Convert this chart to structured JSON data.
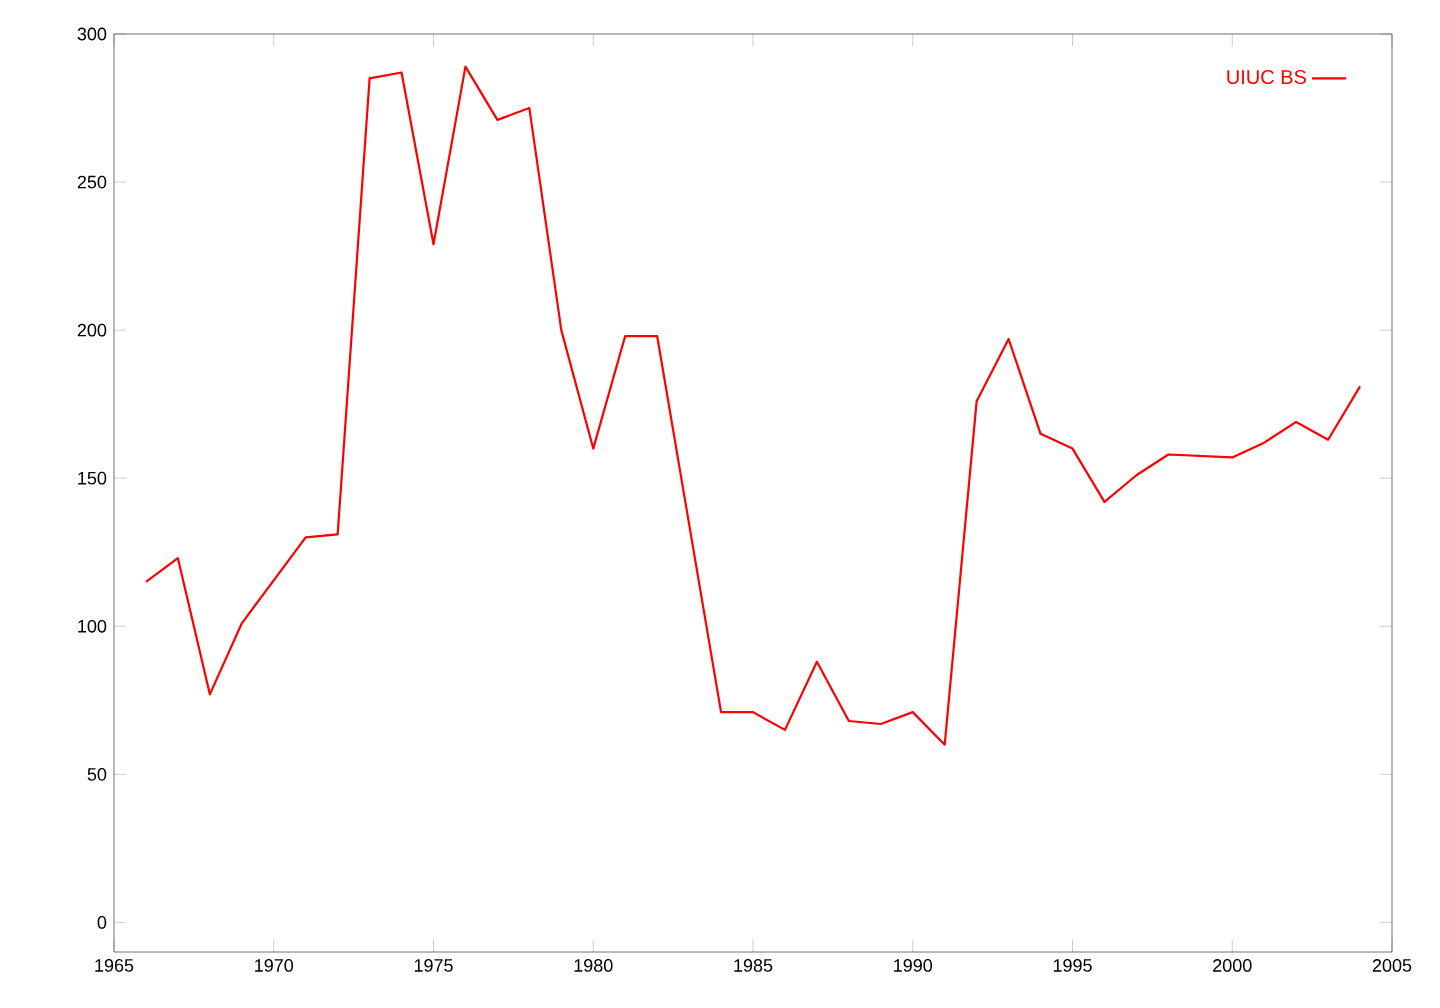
{
  "chart_data": {
    "type": "line",
    "xlim": [
      1965,
      2005
    ],
    "ylim": [
      -10,
      300
    ],
    "xticks": [
      1965,
      1970,
      1975,
      1980,
      1985,
      1990,
      1995,
      2000,
      2005
    ],
    "yticks": [
      0,
      50,
      100,
      150,
      200,
      250,
      300
    ],
    "legend": "top right",
    "grid": false,
    "marker": "none",
    "line_style": "solid",
    "series": [
      {
        "name": "UIUC BS",
        "color": "#ff0000",
        "x": [
          1966,
          1967,
          1968,
          1969,
          1971,
          1972,
          1973,
          1974,
          1975,
          1976,
          1977,
          1978,
          1979,
          1980,
          1981,
          1982,
          1984,
          1985,
          1986,
          1987,
          1988,
          1989,
          1990,
          1991,
          1992,
          1993,
          1994,
          1995,
          1996,
          1997,
          1998,
          2000,
          2001,
          2002,
          2003,
          2004
        ],
        "values": [
          115,
          123,
          77,
          101,
          130,
          131,
          285,
          287,
          229,
          289,
          271,
          275,
          200,
          160,
          198,
          198,
          71,
          71,
          65,
          88,
          68,
          67,
          71,
          60,
          176,
          197,
          165,
          160,
          142,
          151,
          158,
          157,
          162,
          169,
          163,
          181
        ]
      }
    ]
  }
}
